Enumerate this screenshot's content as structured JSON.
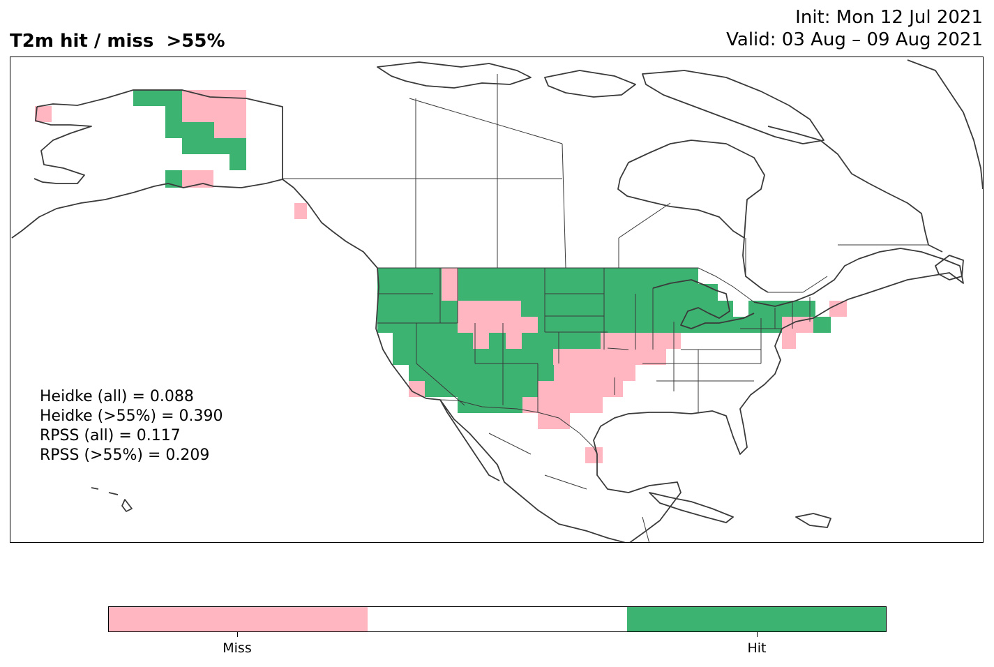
{
  "header": {
    "title": "T2m hit / miss  >55%",
    "init": "Init: Mon 12 Jul 2021",
    "valid": "Valid: 03 Aug – 09 Aug 2021"
  },
  "stats": [
    "Heidke (all) = 0.088",
    "Heidke (>55%) = 0.390",
    "RPSS (all) = 0.117",
    "RPSS (>55%) = 0.209"
  ],
  "colorbar": {
    "segments": [
      {
        "name": "miss",
        "color": "#ffb6c1"
      },
      {
        "name": "neutral",
        "color": "#ffffff"
      },
      {
        "name": "hit",
        "color": "#3cb371"
      }
    ],
    "labels": {
      "miss": "Miss",
      "hit": "Hit"
    }
  },
  "colors": {
    "hit": "#3cb371",
    "miss": "#ffb6c1",
    "coastline": "#3a3a3a"
  }
}
